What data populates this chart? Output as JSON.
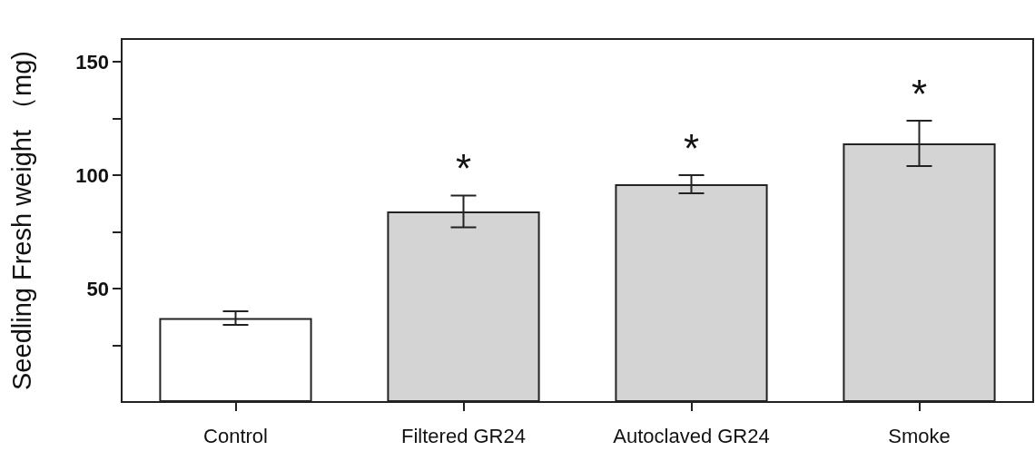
{
  "chart_data": {
    "type": "bar",
    "ylabel": "Seedling Fresh weight （mg)",
    "categories": [
      "Control",
      "Filtered GR24",
      "Autoclaved GR24",
      "Smoke"
    ],
    "values": [
      37,
      84,
      96,
      114
    ],
    "errors": [
      3,
      7,
      4,
      10
    ],
    "colors": [
      "#ffffff",
      "#d4d4d4",
      "#d4d4d4",
      "#d4d4d4"
    ],
    "ylim": [
      0,
      160
    ],
    "yticks": [
      {
        "value": 25,
        "label": null
      },
      50,
      {
        "value": 75,
        "label": null
      },
      100,
      {
        "value": 125,
        "label": null
      },
      150
    ],
    "annotations": [
      "*",
      "*",
      "*"
    ],
    "grid": false
  }
}
